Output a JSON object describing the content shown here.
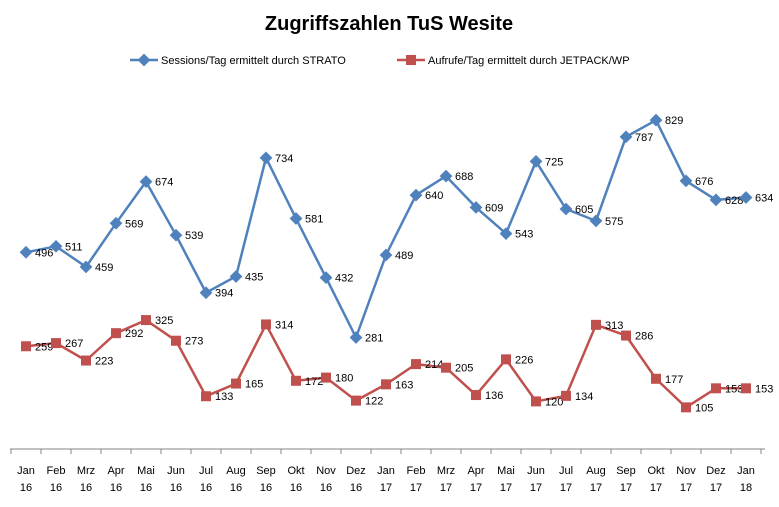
{
  "chart_data": {
    "type": "line",
    "title": "Zugriffszahlen TuS Wesite",
    "categories": [
      {
        "month": "Jan",
        "year": "16"
      },
      {
        "month": "Feb",
        "year": "16"
      },
      {
        "month": "Mrz",
        "year": "16"
      },
      {
        "month": "Apr",
        "year": "16"
      },
      {
        "month": "Mai",
        "year": "16"
      },
      {
        "month": "Jun",
        "year": "16"
      },
      {
        "month": "Jul",
        "year": "16"
      },
      {
        "month": "Aug",
        "year": "16"
      },
      {
        "month": "Sep",
        "year": "16"
      },
      {
        "month": "Okt",
        "year": "16"
      },
      {
        "month": "Nov",
        "year": "16"
      },
      {
        "month": "Dez",
        "year": "16"
      },
      {
        "month": "Jan",
        "year": "17"
      },
      {
        "month": "Feb",
        "year": "17"
      },
      {
        "month": "Mrz",
        "year": "17"
      },
      {
        "month": "Apr",
        "year": "17"
      },
      {
        "month": "Mai",
        "year": "17"
      },
      {
        "month": "Jun",
        "year": "17"
      },
      {
        "month": "Jul",
        "year": "17"
      },
      {
        "month": "Aug",
        "year": "17"
      },
      {
        "month": "Sep",
        "year": "17"
      },
      {
        "month": "Okt",
        "year": "17"
      },
      {
        "month": "Nov",
        "year": "17"
      },
      {
        "month": "Dez",
        "year": "17"
      },
      {
        "month": "Jan",
        "year": "18"
      }
    ],
    "series": [
      {
        "name": "Sessions/Tag ermittelt durch STRATO",
        "color": "#4F81BD",
        "marker": "diamond",
        "values": [
          496,
          511,
          459,
          569,
          674,
          539,
          394,
          435,
          734,
          581,
          432,
          281,
          489,
          640,
          688,
          609,
          543,
          725,
          605,
          575,
          787,
          829,
          676,
          628,
          634
        ]
      },
      {
        "name": "Aufrufe/Tag ermittelt durch JETPACK/WP",
        "color": "#C0504D",
        "marker": "square",
        "values": [
          259,
          267,
          223,
          292,
          325,
          273,
          133,
          165,
          314,
          172,
          180,
          122,
          163,
          214,
          205,
          136,
          226,
          120,
          134,
          313,
          286,
          177,
          105,
          153,
          153
        ]
      }
    ],
    "ylim": [
      0,
      900
    ],
    "grid": false,
    "legend": "top",
    "xlabel": "",
    "ylabel": ""
  }
}
